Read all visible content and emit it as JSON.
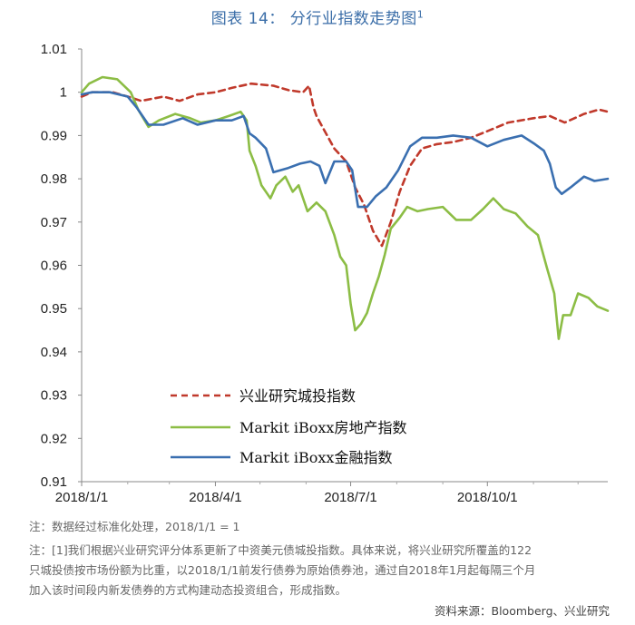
{
  "title": "图表 14： 分行业指数走势图",
  "title_footnote": "1",
  "chart_data": {
    "type": "line",
    "ylim": [
      0.91,
      1.01
    ],
    "yticks": [
      "0.91",
      "0.92",
      "0.93",
      "0.94",
      "0.95",
      "0.96",
      "0.97",
      "0.98",
      "0.99",
      "1",
      "1.01"
    ],
    "xticks": [
      "2018/1/1",
      "2018/4/1",
      "2018/7/1",
      "2018/10/1"
    ],
    "xlim": [
      "2018-01-01",
      "2018-12-21"
    ],
    "grid": false,
    "legend_position": "lower-left inside",
    "series": [
      {
        "name": "兴业研究城投指数",
        "color": "#c0392b",
        "style": "dashed",
        "points": [
          [
            "2018-01-01",
            0.999
          ],
          [
            "2018-01-08",
            1.0
          ],
          [
            "2018-01-22",
            1.0
          ],
          [
            "2018-02-01",
            0.999
          ],
          [
            "2018-02-10",
            0.998
          ],
          [
            "2018-02-25",
            0.999
          ],
          [
            "2018-03-08",
            0.998
          ],
          [
            "2018-03-20",
            0.9995
          ],
          [
            "2018-04-01",
            1.0
          ],
          [
            "2018-04-12",
            1.001
          ],
          [
            "2018-04-25",
            1.002
          ],
          [
            "2018-05-10",
            1.0015
          ],
          [
            "2018-05-20",
            1.0005
          ],
          [
            "2018-05-30",
            1.0
          ],
          [
            "2018-06-03",
            1.0015
          ],
          [
            "2018-06-06",
            0.9965
          ],
          [
            "2018-06-08",
            0.9945
          ],
          [
            "2018-06-12",
            0.992
          ],
          [
            "2018-06-20",
            0.987
          ],
          [
            "2018-06-28",
            0.984
          ],
          [
            "2018-07-04",
            0.978
          ],
          [
            "2018-07-10",
            0.974
          ],
          [
            "2018-07-16",
            0.968
          ],
          [
            "2018-07-22",
            0.9645
          ],
          [
            "2018-07-28",
            0.97
          ],
          [
            "2018-08-03",
            0.977
          ],
          [
            "2018-08-10",
            0.983
          ],
          [
            "2018-08-18",
            0.987
          ],
          [
            "2018-08-28",
            0.988
          ],
          [
            "2018-09-08",
            0.9885
          ],
          [
            "2018-09-20",
            0.9895
          ],
          [
            "2018-10-01",
            0.991
          ],
          [
            "2018-10-15",
            0.993
          ],
          [
            "2018-11-01",
            0.994
          ],
          [
            "2018-11-12",
            0.9945
          ],
          [
            "2018-11-22",
            0.993
          ],
          [
            "2018-12-05",
            0.995
          ],
          [
            "2018-12-15",
            0.996
          ],
          [
            "2018-12-21",
            0.9955
          ]
        ]
      },
      {
        "name": "Markit iBoxx房地产指数",
        "color": "#8cbd45",
        "style": "solid",
        "points": [
          [
            "2018-01-01",
            1.0
          ],
          [
            "2018-01-06",
            1.002
          ],
          [
            "2018-01-15",
            1.0035
          ],
          [
            "2018-01-25",
            1.003
          ],
          [
            "2018-02-03",
            1.0
          ],
          [
            "2018-02-08",
            0.996
          ],
          [
            "2018-02-15",
            0.992
          ],
          [
            "2018-02-22",
            0.9935
          ],
          [
            "2018-03-05",
            0.995
          ],
          [
            "2018-03-15",
            0.994
          ],
          [
            "2018-03-22",
            0.993
          ],
          [
            "2018-04-01",
            0.9935
          ],
          [
            "2018-04-10",
            0.9945
          ],
          [
            "2018-04-18",
            0.9955
          ],
          [
            "2018-04-22",
            0.9935
          ],
          [
            "2018-04-24",
            0.9865
          ],
          [
            "2018-04-28",
            0.983
          ],
          [
            "2018-05-02",
            0.9785
          ],
          [
            "2018-05-08",
            0.9755
          ],
          [
            "2018-05-12",
            0.9785
          ],
          [
            "2018-05-18",
            0.9805
          ],
          [
            "2018-05-23",
            0.977
          ],
          [
            "2018-05-27",
            0.9785
          ],
          [
            "2018-06-02",
            0.9725
          ],
          [
            "2018-06-08",
            0.9745
          ],
          [
            "2018-06-14",
            0.9725
          ],
          [
            "2018-06-20",
            0.967
          ],
          [
            "2018-06-24",
            0.962
          ],
          [
            "2018-06-28",
            0.96
          ],
          [
            "2018-07-01",
            0.951
          ],
          [
            "2018-07-04",
            0.945
          ],
          [
            "2018-07-08",
            0.9465
          ],
          [
            "2018-07-12",
            0.949
          ],
          [
            "2018-07-16",
            0.9535
          ],
          [
            "2018-07-20",
            0.9575
          ],
          [
            "2018-07-24",
            0.9625
          ],
          [
            "2018-07-28",
            0.9685
          ],
          [
            "2018-08-03",
            0.971
          ],
          [
            "2018-08-08",
            0.9735
          ],
          [
            "2018-08-15",
            0.9725
          ],
          [
            "2018-08-22",
            0.973
          ],
          [
            "2018-09-01",
            0.9735
          ],
          [
            "2018-09-10",
            0.9705
          ],
          [
            "2018-09-20",
            0.9705
          ],
          [
            "2018-09-28",
            0.973
          ],
          [
            "2018-10-05",
            0.9755
          ],
          [
            "2018-10-12",
            0.973
          ],
          [
            "2018-10-20",
            0.972
          ],
          [
            "2018-10-28",
            0.969
          ],
          [
            "2018-11-04",
            0.967
          ],
          [
            "2018-11-10",
            0.9595
          ],
          [
            "2018-11-15",
            0.9535
          ],
          [
            "2018-11-18",
            0.943
          ],
          [
            "2018-11-21",
            0.9485
          ],
          [
            "2018-11-26",
            0.9485
          ],
          [
            "2018-12-01",
            0.9535
          ],
          [
            "2018-12-08",
            0.9525
          ],
          [
            "2018-12-14",
            0.9505
          ],
          [
            "2018-12-21",
            0.9495
          ]
        ]
      },
      {
        "name": "Markit iBoxx金融指数",
        "color": "#3a6fb0",
        "style": "solid",
        "points": [
          [
            "2018-01-01",
            0.9995
          ],
          [
            "2018-01-08",
            1.0
          ],
          [
            "2018-01-20",
            1.0
          ],
          [
            "2018-02-01",
            0.999
          ],
          [
            "2018-02-07",
            0.9965
          ],
          [
            "2018-02-15",
            0.9925
          ],
          [
            "2018-02-25",
            0.9925
          ],
          [
            "2018-03-10",
            0.994
          ],
          [
            "2018-03-20",
            0.9925
          ],
          [
            "2018-04-01",
            0.9935
          ],
          [
            "2018-04-12",
            0.9935
          ],
          [
            "2018-04-20",
            0.9945
          ],
          [
            "2018-04-24",
            0.9905
          ],
          [
            "2018-04-28",
            0.9895
          ],
          [
            "2018-05-05",
            0.987
          ],
          [
            "2018-05-10",
            0.9815
          ],
          [
            "2018-05-20",
            0.9825
          ],
          [
            "2018-05-28",
            0.9835
          ],
          [
            "2018-06-04",
            0.984
          ],
          [
            "2018-06-10",
            0.983
          ],
          [
            "2018-06-14",
            0.979
          ],
          [
            "2018-06-20",
            0.984
          ],
          [
            "2018-06-28",
            0.984
          ],
          [
            "2018-07-02",
            0.982
          ],
          [
            "2018-07-06",
            0.9735
          ],
          [
            "2018-07-12",
            0.9735
          ],
          [
            "2018-07-18",
            0.976
          ],
          [
            "2018-07-25",
            0.978
          ],
          [
            "2018-08-02",
            0.982
          ],
          [
            "2018-08-10",
            0.9875
          ],
          [
            "2018-08-18",
            0.9895
          ],
          [
            "2018-08-28",
            0.9895
          ],
          [
            "2018-09-08",
            0.99
          ],
          [
            "2018-09-20",
            0.9895
          ],
          [
            "2018-10-01",
            0.9875
          ],
          [
            "2018-10-12",
            0.989
          ],
          [
            "2018-10-24",
            0.99
          ],
          [
            "2018-11-02",
            0.988
          ],
          [
            "2018-11-08",
            0.9865
          ],
          [
            "2018-11-12",
            0.9835
          ],
          [
            "2018-11-16",
            0.978
          ],
          [
            "2018-11-20",
            0.9765
          ],
          [
            "2018-11-26",
            0.978
          ],
          [
            "2018-12-05",
            0.9805
          ],
          [
            "2018-12-12",
            0.9795
          ],
          [
            "2018-12-21",
            0.98
          ]
        ]
      }
    ]
  },
  "notes": [
    "注：数据经过标准化处理，2018/1/1 = 1",
    "注：[1]我们根据兴业研究评分体系更新了中资美元债城投指数。具体来说，将兴业研究所覆盖的122",
    "只城投债按市场份额为比重，以2018/1/1前发行债券为原始债券池，通过自2018年1月起每隔三个月",
    "加入该时间段内新发债券的方式构建动态投资组合，形成指数。"
  ],
  "source": "资料来源：Bloomberg、兴业研究"
}
